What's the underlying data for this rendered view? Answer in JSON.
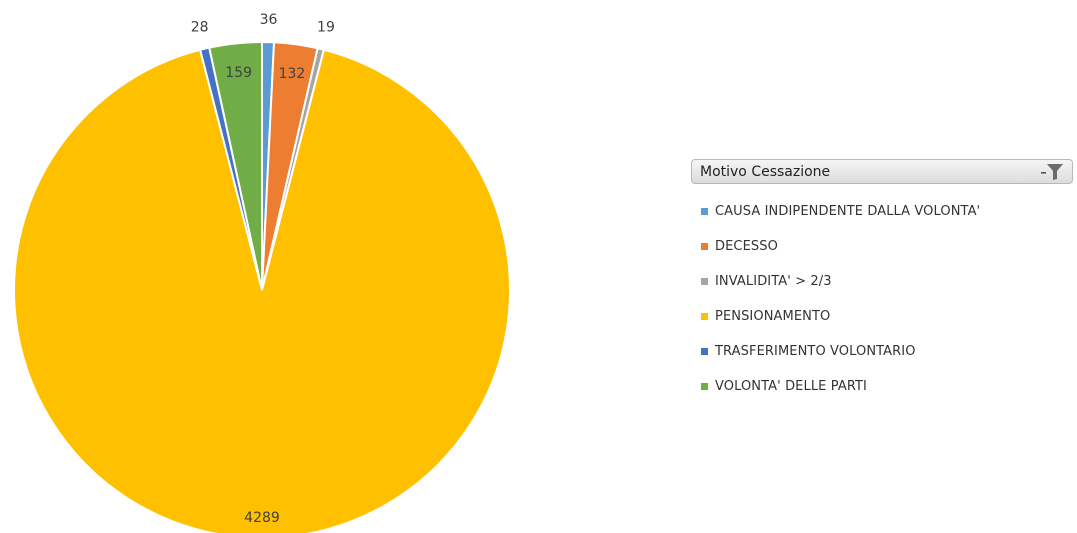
{
  "chart_data": {
    "type": "pie",
    "start_angle_deg": 0,
    "clockwise": true,
    "series": [
      {
        "values": [
          36,
          132,
          19,
          4289,
          28,
          159
        ],
        "labels": [
          "36",
          "132",
          "19",
          "4289",
          "28",
          "159"
        ]
      }
    ],
    "categories": [
      "CAUSA INDIPENDENTE DALLA VOLONTA'",
      "DECESSO",
      "INVALIDITA' > 2/3",
      "PENSIONAMENTO",
      "TRASFERIMENTO VOLONTARIO",
      "VOLONTA' DELLE PARTI"
    ],
    "colors": [
      "#5B9BD5",
      "#ED7D31",
      "#A5A5A5",
      "#FFC000",
      "#4472C4",
      "#70AD47"
    ],
    "label_positions": [
      "outside",
      "inside",
      "outside",
      "inside",
      "outside",
      "inside"
    ],
    "legend_placement": "right"
  },
  "legend": {
    "title": "Motivo Cessazione",
    "filter_icon": "filter-icon",
    "items": [
      {
        "label": "CAUSA INDIPENDENTE DALLA VOLONTA'",
        "color": "#5B9BD5"
      },
      {
        "label": "DECESSO",
        "color": "#ED7D31"
      },
      {
        "label": "INVALIDITA' > 2/3",
        "color": "#A5A5A5"
      },
      {
        "label": "PENSIONAMENTO",
        "color": "#FFC000"
      },
      {
        "label": "TRASFERIMENTO VOLONTARIO",
        "color": "#4472C4"
      },
      {
        "label": "VOLONTA' DELLE PARTI",
        "color": "#70AD47"
      }
    ]
  }
}
